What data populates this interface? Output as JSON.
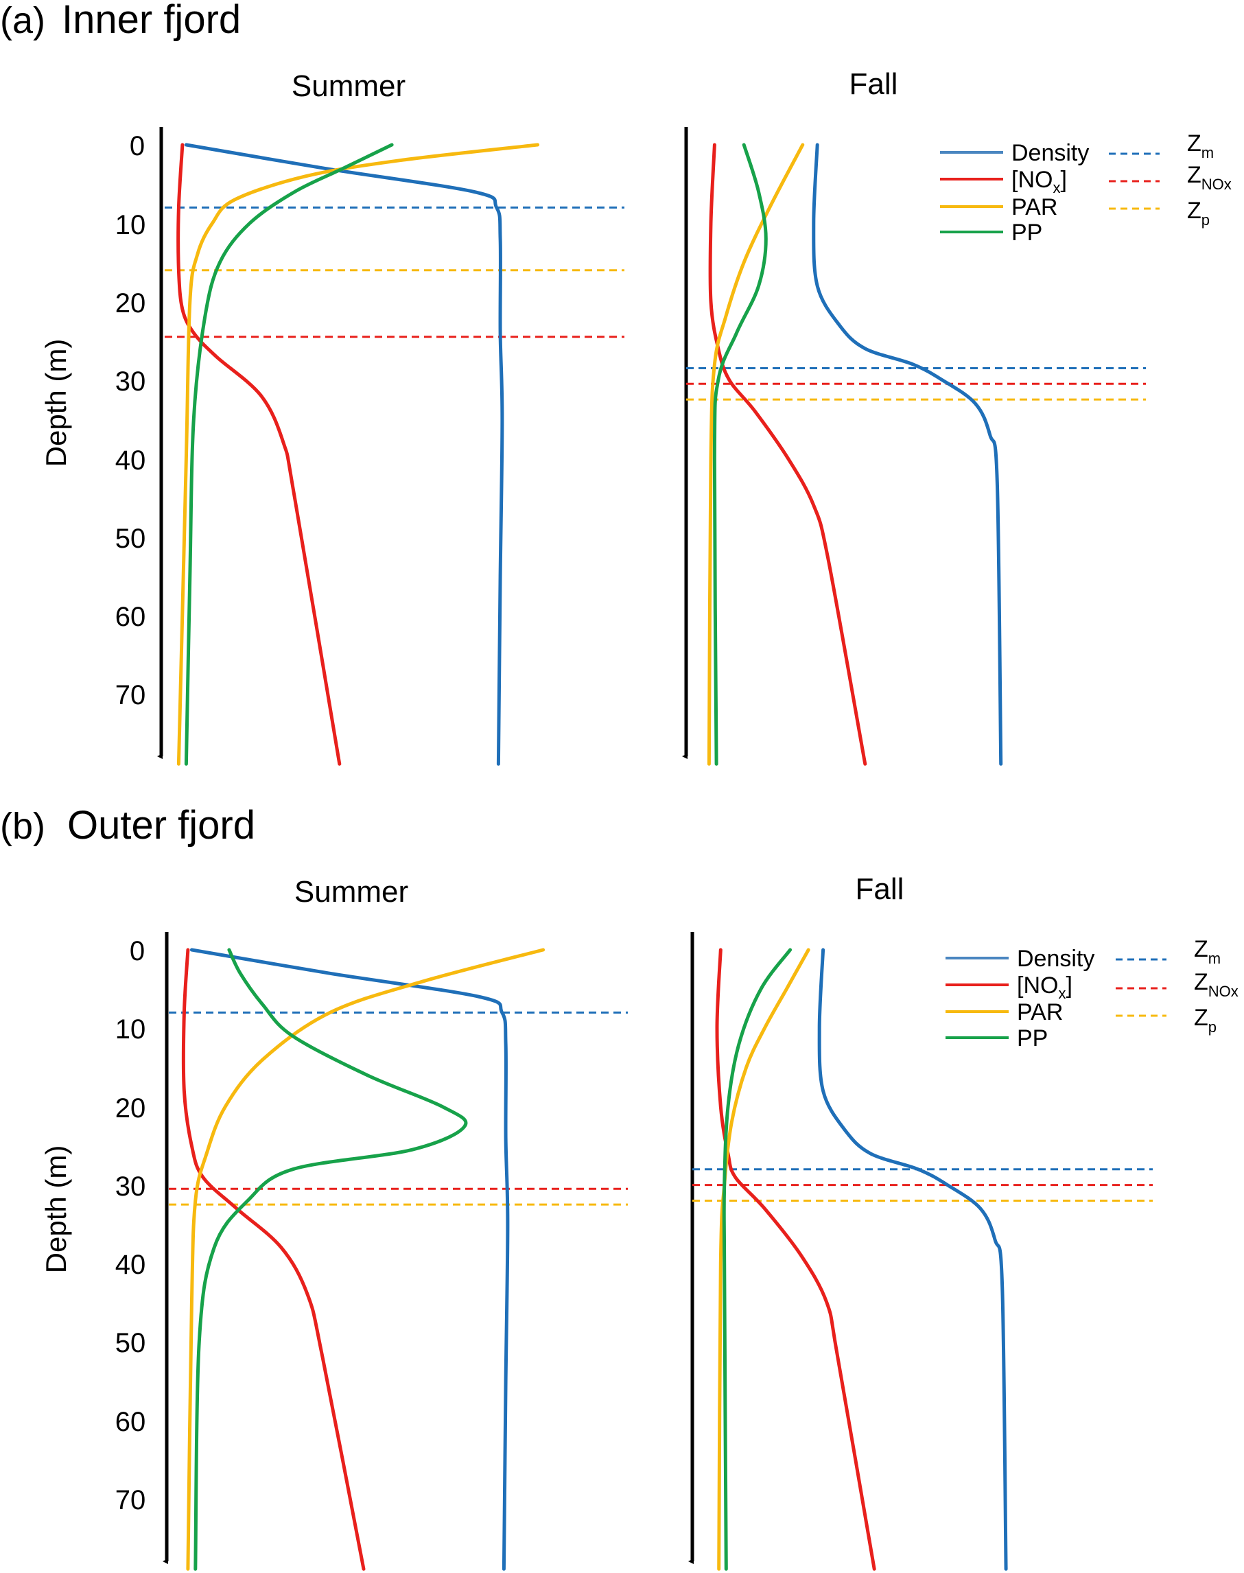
{
  "colors": {
    "density": "#1f6fb8",
    "nox": "#e8201c",
    "par": "#f7b90f",
    "pp": "#17a24a",
    "legend_density": "#4a86c0",
    "axis": "#000000"
  },
  "panels": [
    {
      "letter": "(a)",
      "title": "Inner fjord",
      "ylabel": "Depth (m)",
      "yticks": [
        "0",
        "10",
        "20",
        "30",
        "40",
        "50",
        "60",
        "70"
      ]
    },
    {
      "letter": "(b)",
      "title": "Outer fjord",
      "ylabel": "Depth (m)",
      "yticks": [
        "0",
        "10",
        "20",
        "30",
        "40",
        "50",
        "60",
        "70"
      ]
    }
  ],
  "legend": {
    "density": "Density",
    "nox": "[NO",
    "nox_sub": "x",
    "nox_close": "]",
    "par": "PAR",
    "pp": "PP",
    "zm": "Z",
    "zm_sub": "m",
    "znox": "Z",
    "znox_sub": "NOx",
    "zp": "Z",
    "zp_sub": "p"
  },
  "chart_data": [
    {
      "type": "line",
      "panel": "(a) Inner fjord",
      "subplot": "Summer",
      "title": "Summer",
      "ylabel": "Depth (m)",
      "ylim": [
        0,
        80
      ],
      "y_inverted": true,
      "x_scale": "unitless (relative profile)",
      "series": [
        {
          "name": "Density",
          "color": "#1f6fb8",
          "points": [
            [
              0.03,
              0
            ],
            [
              0.4,
              3
            ],
            [
              0.8,
              6
            ],
            [
              0.86,
              8
            ],
            [
              0.87,
              12
            ],
            [
              0.87,
              24
            ],
            [
              0.875,
              35
            ],
            [
              0.87,
              55
            ],
            [
              0.865,
              79
            ]
          ]
        },
        {
          "name": "[NOx]",
          "color": "#e8201c",
          "points": [
            [
              0.02,
              0
            ],
            [
              0.01,
              8
            ],
            [
              0.01,
              16
            ],
            [
              0.02,
              21
            ],
            [
              0.05,
              24
            ],
            [
              0.11,
              27
            ],
            [
              0.23,
              32
            ],
            [
              0.29,
              38
            ],
            [
              0.32,
              45
            ],
            [
              0.44,
              79
            ]
          ]
        },
        {
          "name": "PAR",
          "color": "#f7b90f",
          "points": [
            [
              0.97,
              0
            ],
            [
              0.6,
              2
            ],
            [
              0.35,
              4
            ],
            [
              0.16,
              7
            ],
            [
              0.1,
              10
            ],
            [
              0.06,
              14
            ],
            [
              0.04,
              20
            ],
            [
              0.03,
              40
            ],
            [
              0.01,
              79
            ]
          ]
        },
        {
          "name": "PP",
          "color": "#17a24a",
          "points": [
            [
              0.58,
              0
            ],
            [
              0.45,
              3
            ],
            [
              0.32,
              6
            ],
            [
              0.2,
              10
            ],
            [
              0.12,
              15
            ],
            [
              0.08,
              22
            ],
            [
              0.05,
              35
            ],
            [
              0.04,
              55
            ],
            [
              0.03,
              79
            ]
          ]
        }
      ],
      "hlines": [
        {
          "name": "Zm",
          "color": "#1f6fb8",
          "y": 8
        },
        {
          "name": "Zp",
          "color": "#f7b90f",
          "y": 16
        },
        {
          "name": "ZNOx",
          "color": "#e8201c",
          "y": 24.5
        }
      ]
    },
    {
      "type": "line",
      "panel": "(a) Inner fjord",
      "subplot": "Fall",
      "title": "Fall",
      "ylabel": "Depth (m)",
      "ylim": [
        0,
        80
      ],
      "y_inverted": true,
      "x_scale": "unitless (relative profile)",
      "series": [
        {
          "name": "Density",
          "color": "#1f6fb8",
          "points": [
            [
              0.32,
              0
            ],
            [
              0.31,
              10
            ],
            [
              0.32,
              18
            ],
            [
              0.38,
              23
            ],
            [
              0.45,
              26
            ],
            [
              0.58,
              28
            ],
            [
              0.66,
              30
            ],
            [
              0.75,
              33
            ],
            [
              0.79,
              37
            ],
            [
              0.81,
              43
            ],
            [
              0.82,
              79
            ]
          ]
        },
        {
          "name": "[NOx]",
          "color": "#e8201c",
          "points": [
            [
              0.04,
              0
            ],
            [
              0.03,
              10
            ],
            [
              0.03,
              20
            ],
            [
              0.05,
              26
            ],
            [
              0.08,
              30
            ],
            [
              0.15,
              34
            ],
            [
              0.24,
              40
            ],
            [
              0.31,
              46
            ],
            [
              0.35,
              53
            ],
            [
              0.45,
              79
            ]
          ]
        },
        {
          "name": "PAR",
          "color": "#f7b90f",
          "points": [
            [
              0.28,
              0
            ],
            [
              0.19,
              8
            ],
            [
              0.12,
              15
            ],
            [
              0.07,
              22
            ],
            [
              0.04,
              28
            ],
            [
              0.03,
              40
            ],
            [
              0.025,
              79
            ]
          ]
        },
        {
          "name": "PP",
          "color": "#17a24a",
          "points": [
            [
              0.12,
              0
            ],
            [
              0.16,
              6
            ],
            [
              0.18,
              12
            ],
            [
              0.16,
              18
            ],
            [
              0.1,
              24
            ],
            [
              0.05,
              30
            ],
            [
              0.04,
              40
            ],
            [
              0.045,
              79
            ]
          ]
        }
      ],
      "hlines": [
        {
          "name": "Zm",
          "color": "#1f6fb8",
          "y": 28.5
        },
        {
          "name": "ZNOx",
          "color": "#e8201c",
          "y": 30.5
        },
        {
          "name": "Zp",
          "color": "#f7b90f",
          "y": 32.5
        }
      ]
    },
    {
      "type": "line",
      "panel": "(b) Outer fjord",
      "subplot": "Summer",
      "title": "Summer",
      "ylabel": "Depth (m)",
      "ylim": [
        0,
        80
      ],
      "y_inverted": true,
      "x_scale": "unitless (relative profile)",
      "series": [
        {
          "name": "Density",
          "color": "#1f6fb8",
          "points": [
            [
              0.03,
              0
            ],
            [
              0.4,
              3
            ],
            [
              0.8,
              6
            ],
            [
              0.86,
              8
            ],
            [
              0.87,
              12
            ],
            [
              0.87,
              24
            ],
            [
              0.875,
              35
            ],
            [
              0.87,
              55
            ],
            [
              0.865,
              79
            ]
          ]
        },
        {
          "name": "[NOx]",
          "color": "#e8201c",
          "points": [
            [
              0.02,
              0
            ],
            [
              0.01,
              8
            ],
            [
              0.01,
              18
            ],
            [
              0.03,
              25
            ],
            [
              0.06,
              29
            ],
            [
              0.15,
              33
            ],
            [
              0.27,
              38
            ],
            [
              0.34,
              44
            ],
            [
              0.38,
              52
            ],
            [
              0.49,
              79
            ]
          ]
        },
        {
          "name": "PAR",
          "color": "#f7b90f",
          "points": [
            [
              0.97,
              0
            ],
            [
              0.65,
              4
            ],
            [
              0.4,
              8
            ],
            [
              0.22,
              14
            ],
            [
              0.12,
              20
            ],
            [
              0.07,
              26
            ],
            [
              0.04,
              32
            ],
            [
              0.03,
              45
            ],
            [
              0.02,
              79
            ]
          ]
        },
        {
          "name": "PP",
          "color": "#17a24a",
          "points": [
            [
              0.13,
              0
            ],
            [
              0.16,
              3
            ],
            [
              0.22,
              7
            ],
            [
              0.3,
              11
            ],
            [
              0.5,
              16
            ],
            [
              0.7,
              20
            ],
            [
              0.76,
              22.5
            ],
            [
              0.62,
              25.5
            ],
            [
              0.3,
              28
            ],
            [
              0.18,
              32
            ],
            [
              0.09,
              38
            ],
            [
              0.05,
              50
            ],
            [
              0.04,
              79
            ]
          ]
        }
      ],
      "hlines": [
        {
          "name": "Zm",
          "color": "#1f6fb8",
          "y": 8
        },
        {
          "name": "ZNOx",
          "color": "#e8201c",
          "y": 30.5
        },
        {
          "name": "Zp",
          "color": "#f7b90f",
          "y": 32.5
        }
      ]
    },
    {
      "type": "line",
      "panel": "(b) Outer fjord",
      "subplot": "Fall",
      "title": "Fall",
      "ylabel": "Depth (m)",
      "ylim": [
        0,
        80
      ],
      "y_inverted": true,
      "x_scale": "unitless (relative profile)",
      "series": [
        {
          "name": "Density",
          "color": "#1f6fb8",
          "points": [
            [
              0.32,
              0
            ],
            [
              0.31,
              10
            ],
            [
              0.32,
              18
            ],
            [
              0.38,
              23
            ],
            [
              0.45,
              26
            ],
            [
              0.58,
              28
            ],
            [
              0.66,
              30
            ],
            [
              0.75,
              33
            ],
            [
              0.79,
              37
            ],
            [
              0.81,
              43
            ],
            [
              0.82,
              79
            ]
          ]
        },
        {
          "name": "[NOx]",
          "color": "#e8201c",
          "points": [
            [
              0.04,
              0
            ],
            [
              0.03,
              10
            ],
            [
              0.04,
              20
            ],
            [
              0.06,
              26
            ],
            [
              0.08,
              29
            ],
            [
              0.16,
              33
            ],
            [
              0.26,
              39
            ],
            [
              0.33,
              45
            ],
            [
              0.36,
              52
            ],
            [
              0.46,
              79
            ]
          ]
        },
        {
          "name": "PAR",
          "color": "#f7b90f",
          "points": [
            [
              0.28,
              0
            ],
            [
              0.22,
              5
            ],
            [
              0.16,
              10
            ],
            [
              0.11,
              15
            ],
            [
              0.07,
              22
            ],
            [
              0.05,
              30
            ],
            [
              0.04,
              40
            ],
            [
              0.035,
              79
            ]
          ]
        },
        {
          "name": "PP",
          "color": "#17a24a",
          "points": [
            [
              0.23,
              0
            ],
            [
              0.15,
              5
            ],
            [
              0.09,
              12
            ],
            [
              0.06,
              20
            ],
            [
              0.05,
              30
            ],
            [
              0.05,
              40
            ],
            [
              0.055,
              79
            ]
          ]
        }
      ],
      "hlines": [
        {
          "name": "Zm",
          "color": "#1f6fb8",
          "y": 28
        },
        {
          "name": "ZNOx",
          "color": "#e8201c",
          "y": 30
        },
        {
          "name": "Zp",
          "color": "#f7b90f",
          "y": 32
        }
      ]
    }
  ]
}
